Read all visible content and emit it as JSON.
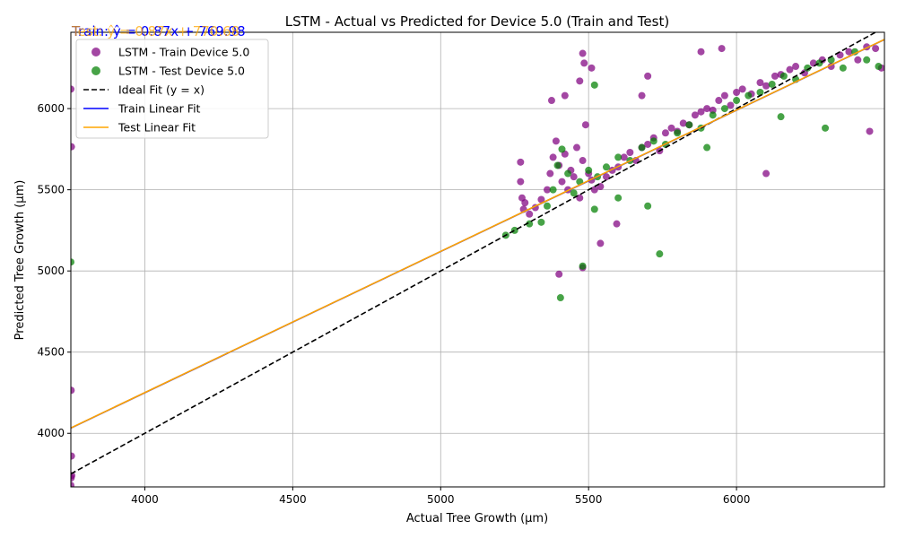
{
  "chart_data": {
    "type": "scatter",
    "title": "LSTM - Actual vs Predicted for Device 5.0 (Train and Test)",
    "xlabel": "Actual Tree Growth (µm)",
    "ylabel": "Predicted Tree Growth (µm)",
    "xlim": [
      3750,
      6500
    ],
    "ylim": [
      3670,
      6470
    ],
    "x_ticks": [
      4000,
      4500,
      5000,
      5500,
      6000
    ],
    "y_ticks": [
      4000,
      4500,
      5000,
      5500,
      6000
    ],
    "grid": true,
    "legend_position": "upper-left",
    "equations": {
      "train": "Train: ŷ = 0.87x + 769.98",
      "test": "Test: ŷ = 0.87x + 770.68"
    },
    "colors": {
      "train": "#800080",
      "test": "#008000",
      "ideal": "#000000",
      "train_fit": "#0000ff",
      "test_fit": "#ffa500"
    },
    "series": [
      {
        "name": "LSTM - Train Device 5.0",
        "kind": "scatter",
        "color": "#800080",
        "x": [
          3750,
          3752,
          3751,
          3752,
          3753,
          3751,
          3750,
          5270,
          5270,
          5275,
          5280,
          5285,
          5300,
          5320,
          5340,
          5360,
          5370,
          5380,
          5390,
          5400,
          5410,
          5420,
          5430,
          5440,
          5450,
          5460,
          5470,
          5480,
          5490,
          5500,
          5510,
          5520,
          5540,
          5560,
          5580,
          5600,
          5620,
          5640,
          5660,
          5680,
          5700,
          5720,
          5740,
          5760,
          5780,
          5800,
          5820,
          5840,
          5860,
          5880,
          5900,
          5920,
          5940,
          5960,
          5980,
          6000,
          6020,
          6050,
          6080,
          6100,
          6130,
          6150,
          6180,
          6200,
          6230,
          6260,
          6290,
          6320,
          6350,
          6380,
          6410,
          6440,
          6470,
          6490,
          5480,
          5485,
          5510,
          5375,
          5420,
          5470,
          5540,
          5680,
          5700,
          5880,
          5950,
          6100,
          6450,
          5400,
          5480,
          5595
        ],
        "y": [
          6120,
          5765,
          4265,
          3860,
          3740,
          3725,
          3680,
          5670,
          5550,
          5450,
          5380,
          5420,
          5350,
          5390,
          5440,
          5500,
          5600,
          5700,
          5800,
          5650,
          5550,
          5720,
          5500,
          5620,
          5580,
          5760,
          5450,
          5680,
          5900,
          5600,
          5560,
          5500,
          5520,
          5580,
          5620,
          5640,
          5700,
          5730,
          5680,
          5760,
          5780,
          5820,
          5740,
          5850,
          5880,
          5860,
          5910,
          5900,
          5960,
          5980,
          6000,
          5990,
          6050,
          6080,
          6020,
          6100,
          6120,
          6090,
          6160,
          6140,
          6200,
          6210,
          6240,
          6260,
          6220,
          6280,
          6300,
          6260,
          6330,
          6350,
          6300,
          6380,
          6370,
          6250,
          6340,
          6280,
          6250,
          6050,
          6080,
          6170,
          5170,
          6080,
          6200,
          6350,
          6370,
          5600,
          5860,
          4980,
          5020,
          5290
        ]
      },
      {
        "name": "LSTM - Test Device 5.0",
        "kind": "scatter",
        "color": "#008000",
        "x": [
          3750,
          5405,
          5740,
          5480,
          5520,
          5360,
          5380,
          5395,
          5410,
          5430,
          5450,
          5470,
          5500,
          5530,
          5560,
          5600,
          5640,
          5680,
          5720,
          5760,
          5800,
          5840,
          5880,
          5920,
          5960,
          6000,
          6040,
          6080,
          6120,
          6160,
          6200,
          6240,
          6280,
          6320,
          6360,
          6400,
          6440,
          6480,
          5340,
          5300,
          5250,
          5220,
          5520,
          5600,
          5700,
          5900,
          6150,
          6300
        ],
        "y": [
          5055,
          4835,
          5105,
          5030,
          6145,
          5400,
          5500,
          5650,
          5750,
          5600,
          5480,
          5550,
          5620,
          5580,
          5640,
          5700,
          5680,
          5760,
          5800,
          5780,
          5850,
          5900,
          5880,
          5960,
          6000,
          6050,
          6080,
          6100,
          6150,
          6200,
          6180,
          6250,
          6280,
          6300,
          6250,
          6350,
          6300,
          6260,
          5300,
          5290,
          5250,
          5220,
          5380,
          5450,
          5400,
          5760,
          5950,
          5880
        ]
      },
      {
        "name": "Ideal Fit (y = x)",
        "kind": "line",
        "style": "dashed",
        "color": "#000000",
        "x": [
          3750,
          6500
        ],
        "y": [
          3750,
          6500
        ]
      },
      {
        "name": "Train Linear Fit",
        "kind": "line",
        "style": "solid",
        "color": "#0000ff",
        "slope": 0.87,
        "intercept": 769.98,
        "x": [
          3750,
          6500
        ]
      },
      {
        "name": "Test Linear Fit",
        "kind": "line",
        "style": "solid",
        "color": "#ffa500",
        "slope": 0.87,
        "intercept": 770.68,
        "x": [
          3750,
          6500
        ]
      }
    ]
  }
}
